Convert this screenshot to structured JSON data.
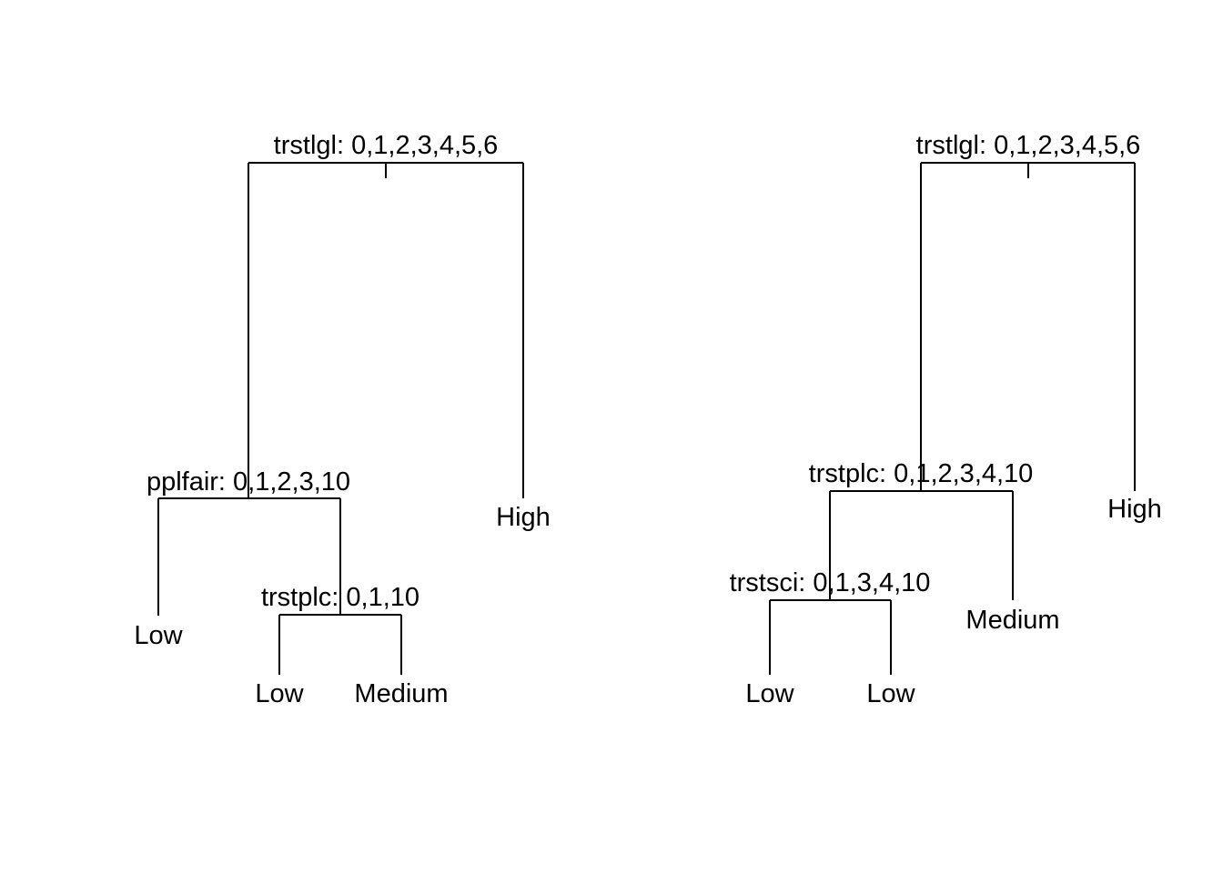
{
  "trees": [
    {
      "root": {
        "split": "trstlgl: 0,1,2,3,4,5,6",
        "left": {
          "split": "pplfair: 0,1,2,3,10",
          "left": {
            "leaf": "Low"
          },
          "right": {
            "split": "trstplc: 0,1,10",
            "left": {
              "leaf": "Low"
            },
            "right": {
              "leaf": "Medium"
            }
          }
        },
        "right": {
          "leaf": "High"
        }
      }
    },
    {
      "root": {
        "split": "trstlgl: 0,1,2,3,4,5,6",
        "left": {
          "split": "trstplc: 0,1,2,3,4,10",
          "left": {
            "split": "trstsci: 0,1,3,4,10",
            "left": {
              "leaf": "Low"
            },
            "right": {
              "leaf": "Low"
            }
          },
          "right": {
            "leaf": "Medium"
          }
        },
        "right": {
          "leaf": "High"
        }
      }
    }
  ]
}
